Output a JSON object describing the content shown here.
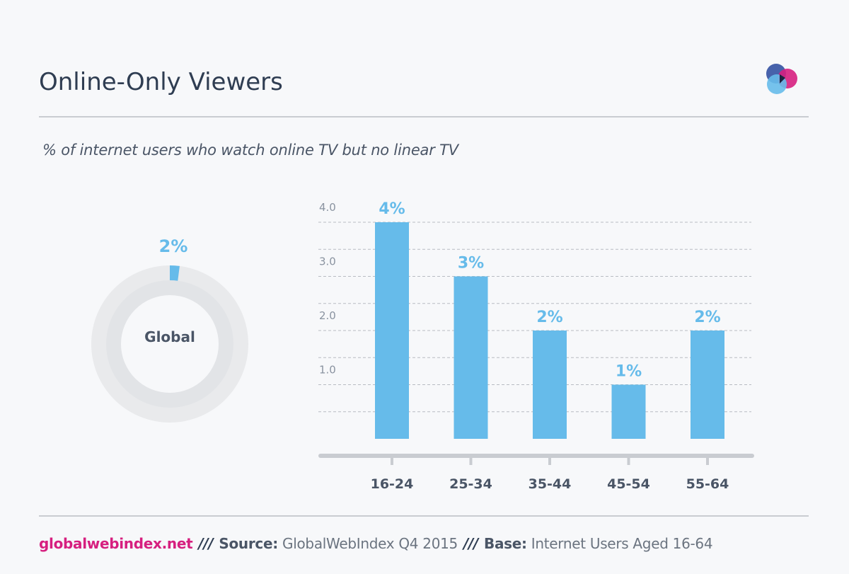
{
  "header": {
    "title": "Online-Only Viewers",
    "subtitle": "% of internet users who watch online TV but no linear TV"
  },
  "logo": {
    "icon": "globalwebindex-logo-icon",
    "colors": [
      "#3d5aa6",
      "#d61f7f",
      "#66bbea"
    ]
  },
  "donut": {
    "label": "Global",
    "value": 2,
    "value_label": "2%",
    "max": 100
  },
  "chart_data": {
    "type": "bar",
    "categories": [
      "16-24",
      "25-34",
      "35-44",
      "45-54",
      "55-64"
    ],
    "values": [
      4,
      3,
      2,
      1,
      2
    ],
    "value_labels": [
      "4%",
      "3%",
      "2%",
      "1%",
      "2%"
    ],
    "y_ticks": [
      "1.0",
      "2.0",
      "3.0",
      "4.0"
    ],
    "ylim": [
      0,
      4
    ],
    "grid": true,
    "xlabel": "",
    "ylabel": "",
    "bar_color": "#66bbea",
    "label_color": "#66bbea"
  },
  "footer": {
    "brand": "globalwebindex.net",
    "separator": "///",
    "source_key": "Source:",
    "source_value": "GlobalWebIndex Q4 2015",
    "base_key": "Base:",
    "base_value": "Internet Users Aged 16-64"
  }
}
